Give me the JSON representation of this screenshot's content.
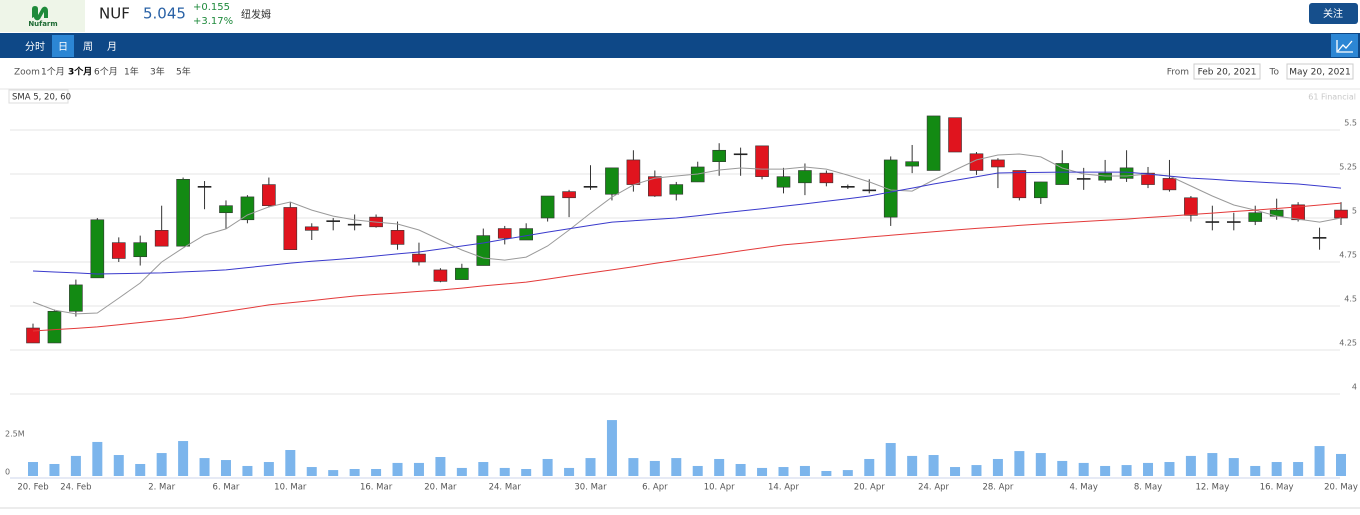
{
  "header": {
    "logo_text": "Nufarm",
    "symbol": "NUF",
    "price": "5.045",
    "change": "+0.155",
    "change_pct": "+3.17%",
    "name": "纽发姆",
    "follow_button": "关注"
  },
  "tabs": [
    "分时",
    "日",
    "周",
    "月"
  ],
  "active_tab": 1,
  "zoom": {
    "label": "Zoom",
    "options": [
      "1个月",
      "3个月",
      "6个月",
      "1年",
      "3年",
      "5年"
    ],
    "active": 1
  },
  "range": {
    "from_label": "From",
    "from": "Feb 20, 2021",
    "to_label": "To",
    "to": "May 20, 2021"
  },
  "indicator": "SMA 5, 20, 60",
  "credit": "61 Financial",
  "chart_data": {
    "type": "candlestick",
    "categories": [
      "20. Feb",
      null,
      "24. Feb",
      null,
      null,
      null,
      "2. Mar",
      null,
      null,
      "6. Mar",
      null,
      null,
      "10. Mar",
      null,
      null,
      null,
      "16. Mar",
      null,
      null,
      "20. Mar",
      null,
      null,
      "24. Mar",
      null,
      null,
      null,
      "30. Mar",
      null,
      null,
      "6. Apr",
      null,
      null,
      "10. Apr",
      null,
      null,
      "14. Apr",
      null,
      null,
      null,
      "20. Apr",
      null,
      null,
      "24. Apr",
      null,
      null,
      "28. Apr",
      null,
      null,
      null,
      "4. May",
      null,
      null,
      "8. May",
      null,
      null,
      "12. May",
      null,
      null,
      "16. May",
      null,
      null,
      "20. May"
    ],
    "open": [
      4.29,
      4.47,
      4.62,
      4.99,
      4.77,
      4.86,
      4.84,
      5.22,
      5.18,
      5.07,
      5.12,
      5.07,
      4.82,
      4.93,
      4.985,
      4.965,
      4.95,
      4.85,
      4.75,
      4.64,
      4.715,
      4.9,
      4.885,
      4.94,
      5.125,
      5.115,
      5.18,
      5.285,
      5.19,
      5.125,
      5.19,
      5.29,
      5.385,
      5.365,
      5.235,
      5.235,
      5.27,
      5.2,
      5.18,
      5.16,
      5.33,
      5.32,
      5.58,
      5.375,
      5.27,
      5.29,
      5.115,
      5.205,
      5.31,
      5.225,
      5.255,
      5.285,
      5.19,
      5.16,
      5.015,
      4.98,
      4.98,
      5.03,
      5.045,
      4.99,
      4.89,
      5.0
    ],
    "high": [
      4.4,
      4.48,
      4.65,
      5.0,
      4.89,
      4.9,
      5.07,
      5.23,
      5.21,
      5.1,
      5.13,
      5.23,
      5.09,
      4.97,
      5.0,
      5.02,
      5.02,
      4.98,
      4.86,
      4.715,
      4.74,
      4.94,
      4.955,
      4.97,
      5.125,
      5.16,
      5.3,
      5.285,
      5.385,
      5.27,
      5.205,
      5.32,
      5.425,
      5.4,
      5.41,
      5.285,
      5.31,
      5.27,
      5.19,
      5.22,
      5.35,
      5.415,
      5.58,
      5.57,
      5.375,
      5.34,
      5.27,
      5.205,
      5.385,
      5.285,
      5.33,
      5.385,
      5.29,
      5.33,
      5.125,
      5.07,
      5.03,
      5.07,
      5.11,
      5.09,
      4.945,
      5.09
    ],
    "low": [
      4.29,
      4.29,
      4.44,
      4.66,
      4.75,
      4.73,
      4.84,
      4.84,
      5.05,
      4.94,
      4.97,
      5.06,
      4.82,
      4.875,
      4.93,
      4.93,
      4.945,
      4.82,
      4.73,
      4.635,
      4.65,
      4.73,
      4.85,
      4.875,
      4.98,
      5.005,
      5.16,
      5.1,
      5.15,
      5.12,
      5.1,
      5.205,
      5.24,
      5.24,
      5.22,
      5.14,
      5.13,
      5.18,
      5.165,
      5.14,
      4.955,
      5.255,
      5.27,
      5.375,
      5.245,
      5.17,
      5.1,
      5.08,
      5.19,
      5.16,
      5.2,
      5.205,
      5.17,
      5.15,
      4.98,
      4.93,
      4.93,
      4.96,
      4.99,
      4.98,
      4.82,
      4.96
    ],
    "close": [
      4.375,
      4.29,
      4.47,
      4.66,
      4.86,
      4.78,
      4.93,
      4.84,
      5.18,
      5.03,
      4.99,
      5.19,
      5.06,
      4.95,
      4.985,
      4.965,
      5.005,
      4.93,
      4.795,
      4.705,
      4.65,
      4.73,
      4.94,
      4.875,
      5.0,
      5.15,
      5.18,
      5.135,
      5.33,
      5.235,
      5.135,
      5.205,
      5.32,
      5.365,
      5.41,
      5.175,
      5.2,
      5.255,
      5.18,
      5.16,
      5.005,
      5.295,
      5.27,
      5.57,
      5.365,
      5.33,
      5.27,
      5.115,
      5.19,
      5.225,
      5.215,
      5.225,
      5.255,
      5.225,
      5.115,
      4.98,
      4.98,
      4.98,
      5.01,
      5.075,
      4.89,
      5.045
    ],
    "up_color": "#e0141e",
    "down_color": "#138a13",
    "flat_color": "#222222",
    "wick_color": "#333333",
    "ylim": [
      4,
      5.72
    ],
    "yticks": [
      4,
      4.25,
      4.5,
      4.75,
      5,
      5.25,
      5.5
    ],
    "grid": true,
    "series": [
      {
        "color": "#9a9a9a",
        "values": [
          4.523,
          4.477,
          4.455,
          4.46,
          4.545,
          4.631,
          4.75,
          4.83,
          4.903,
          4.938,
          5.017,
          5.063,
          5.091,
          5.045,
          5.011,
          4.989,
          4.977,
          4.966,
          4.932,
          4.875,
          4.818,
          4.773,
          4.761,
          4.778,
          4.841,
          4.932,
          5.028,
          5.119,
          5.188,
          5.227,
          5.239,
          5.25,
          5.273,
          5.284,
          5.278,
          5.278,
          5.29,
          5.278,
          5.244,
          5.205,
          5.159,
          5.153,
          5.216,
          5.273,
          5.33,
          5.358,
          5.364,
          5.347,
          5.284,
          5.25,
          5.239,
          5.239,
          5.25,
          5.239,
          5.182,
          5.125,
          5.074,
          5.045,
          5.011,
          4.994,
          4.977,
          5.0
        ]
      },
      {
        "color": "#3a3acc",
        "values": [
          4.699,
          4.693,
          4.688,
          4.682,
          4.684,
          4.686,
          4.688,
          4.694,
          4.699,
          4.705,
          4.718,
          4.731,
          4.744,
          4.754,
          4.763,
          4.773,
          4.784,
          4.796,
          4.807,
          4.824,
          4.841,
          4.858,
          4.879,
          4.899,
          4.92,
          4.939,
          4.958,
          4.977,
          4.985,
          4.992,
          5.0,
          5.013,
          5.027,
          5.04,
          5.053,
          5.067,
          5.08,
          5.095,
          5.11,
          5.125,
          5.148,
          5.17,
          5.193,
          5.214,
          5.235,
          5.256,
          5.258,
          5.259,
          5.261,
          5.261,
          5.261,
          5.261,
          5.25,
          5.238,
          5.227,
          5.22,
          5.212,
          5.205,
          5.199,
          5.193,
          5.182,
          5.17
        ]
      },
      {
        "color": "#e33a3a",
        "values": [
          4.358,
          4.366,
          4.373,
          4.381,
          4.394,
          4.406,
          4.419,
          4.432,
          4.45,
          4.469,
          4.487,
          4.506,
          4.519,
          4.531,
          4.544,
          4.557,
          4.566,
          4.574,
          4.583,
          4.591,
          4.602,
          4.614,
          4.625,
          4.636,
          4.653,
          4.671,
          4.688,
          4.705,
          4.723,
          4.742,
          4.76,
          4.778,
          4.795,
          4.813,
          4.83,
          4.847,
          4.858,
          4.87,
          4.881,
          4.892,
          4.902,
          4.912,
          4.922,
          4.932,
          4.941,
          4.949,
          4.958,
          4.966,
          4.973,
          4.98,
          4.987,
          4.994,
          5.003,
          5.011,
          5.02,
          5.028,
          5.037,
          5.045,
          5.054,
          5.063,
          5.074,
          5.085
        ]
      }
    ],
    "volume": {
      "color": "#7cb5ec",
      "ylim": [
        0,
        5000000
      ],
      "yticks": [
        0,
        {
          "value": 2500000,
          "label": "2.5M"
        }
      ],
      "values": [
        920000,
        790000,
        1320000,
        2240000,
        1380000,
        790000,
        1510000,
        2300000,
        1180000,
        1050000,
        660000,
        920000,
        1710000,
        590000,
        390000,
        460000,
        460000,
        860000,
        860000,
        1250000,
        530000,
        920000,
        530000,
        460000,
        1120000,
        530000,
        1180000,
        3680000,
        1180000,
        990000,
        1180000,
        660000,
        1120000,
        790000,
        530000,
        590000,
        660000,
        330000,
        390000,
        1120000,
        2170000,
        1320000,
        1380000,
        590000,
        720000,
        1120000,
        1640000,
        1510000,
        990000,
        860000,
        660000,
        720000,
        860000,
        920000,
        1320000,
        1510000,
        1180000,
        660000,
        920000,
        920000,
        1970000,
        1450000
      ]
    }
  }
}
